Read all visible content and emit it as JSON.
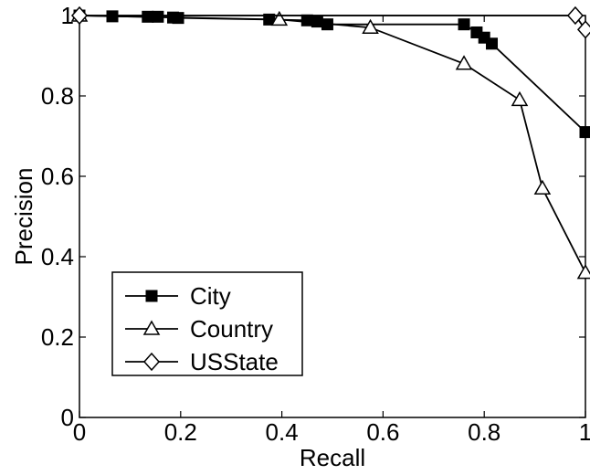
{
  "chart_data": {
    "type": "line",
    "xlabel": "Recall",
    "ylabel": "Precision",
    "xlim": [
      0,
      1
    ],
    "ylim": [
      0,
      1
    ],
    "xticks": [
      0,
      0.2,
      0.4,
      0.6,
      0.8,
      1
    ],
    "xtick_labels": [
      "0",
      "0.2",
      "0.4",
      "0.6",
      "0.8",
      "1"
    ],
    "yticks": [
      0,
      0.2,
      0.4,
      0.6,
      0.8,
      1
    ],
    "ytick_labels": [
      "0",
      "0.2",
      "0.4",
      "0.6",
      "0.8",
      "1"
    ],
    "grid": false,
    "legend_position": "bottom-left",
    "series": [
      {
        "name": "City",
        "marker": "filled-square",
        "color": "#000000",
        "points": [
          [
            0.0,
            1.0
          ],
          [
            0.065,
            0.998
          ],
          [
            0.135,
            0.997
          ],
          [
            0.155,
            0.997
          ],
          [
            0.185,
            0.995
          ],
          [
            0.195,
            0.994
          ],
          [
            0.375,
            0.99
          ],
          [
            0.45,
            0.988
          ],
          [
            0.47,
            0.985
          ],
          [
            0.49,
            0.978
          ],
          [
            0.76,
            0.978
          ],
          [
            0.785,
            0.958
          ],
          [
            0.8,
            0.945
          ],
          [
            0.815,
            0.93
          ],
          [
            1.0,
            0.71
          ]
        ]
      },
      {
        "name": "Country",
        "marker": "open-triangle",
        "color": "#000000",
        "points": [
          [
            0.0,
            1.0
          ],
          [
            0.395,
            0.99
          ],
          [
            0.575,
            0.97
          ],
          [
            0.76,
            0.88
          ],
          [
            0.87,
            0.79
          ],
          [
            0.915,
            0.57
          ],
          [
            1.0,
            0.36
          ]
        ]
      },
      {
        "name": "USState",
        "marker": "open-diamond",
        "color": "#000000",
        "points": [
          [
            0.0,
            1.0
          ],
          [
            0.98,
            1.0
          ],
          [
            1.0,
            0.965
          ]
        ]
      }
    ]
  }
}
